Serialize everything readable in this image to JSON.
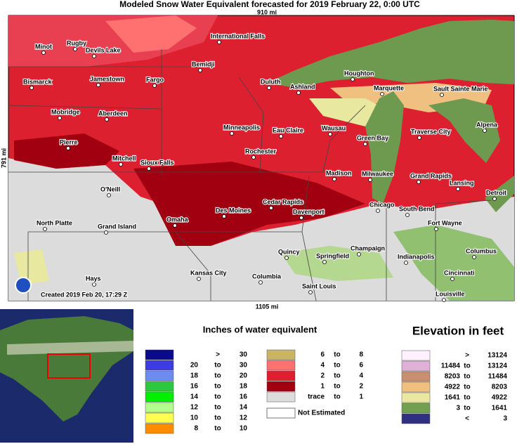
{
  "header": {
    "title": "Modeled Snow Water Equivalent forecasted for 2019 February 22, 0:00 UTC"
  },
  "map": {
    "top_scale": "910 mi",
    "bottom_scale": "1105 mi",
    "side_scale": "791 mi",
    "created": "Created 2019 Feb 20, 17:29 Z",
    "cities": [
      "Minot",
      "Rugby",
      "Devils Lake",
      "International Falls",
      "Bemidji",
      "Bismarck",
      "Jamestown",
      "Fargo",
      "Duluth",
      "Ashland",
      "Houghton",
      "Marquette",
      "Sault Sainte Marie",
      "Mobridge",
      "Aberdeen",
      "Minneapolis",
      "Eau Claire",
      "Wausau",
      "Traverse City",
      "Alpena",
      "Pierre",
      "Green Bay",
      "Rochester",
      "Mitchell",
      "Sioux Falls",
      "Madison",
      "Milwaukee",
      "Grand Rapids",
      "Lansing",
      "O'Neill",
      "Detroit",
      "Cedar Rapids",
      "Des Moines",
      "Davenport",
      "Chicago",
      "South Bend",
      "North Platte",
      "Grand Island",
      "Omaha",
      "Fort Wayne",
      "Quincy",
      "Springfield",
      "Champaign",
      "Indianapolis",
      "Columbus",
      "Hays",
      "Kansas City",
      "Columbia",
      "Cincinnati",
      "Saint Louis",
      "Louisville"
    ]
  },
  "water_legend": {
    "title": "Inches of water equivalent",
    "rows": [
      {
        "color": "#0a0a8c",
        "texts": [
          ">",
          "30"
        ]
      },
      {
        "color": "#3c3ce0",
        "texts": [
          "20",
          "to",
          "30"
        ]
      },
      {
        "color": "#6e8cf0",
        "texts": [
          "18",
          "to",
          "20"
        ]
      },
      {
        "color": "#2ec83c",
        "texts": [
          "16",
          "to",
          "18"
        ]
      },
      {
        "color": "#00f000",
        "texts": [
          "14",
          "to",
          "16"
        ]
      },
      {
        "color": "#b4ff8c",
        "texts": [
          "12",
          "to",
          "14"
        ]
      },
      {
        "color": "#ffff50",
        "texts": [
          "10",
          "to",
          "12"
        ]
      },
      {
        "color": "#ff8c00",
        "texts": [
          "8",
          "to",
          "10"
        ]
      },
      {
        "color": "#c8b464",
        "texts": [
          "6",
          "to",
          "8"
        ]
      },
      {
        "color": "#ff7070",
        "texts": [
          "4",
          "to",
          "6"
        ]
      },
      {
        "color": "#dc2030",
        "texts": [
          "2",
          "to",
          "4"
        ]
      },
      {
        "color": "#a00010",
        "texts": [
          "1",
          "to",
          "2"
        ]
      },
      {
        "color": "#dcdcdc",
        "texts": [
          "trace",
          "to",
          "1"
        ]
      }
    ],
    "not_estimated": {
      "color": "#ffffff",
      "text": "Not Estimated"
    }
  },
  "elevation_legend": {
    "title": "Elevation in feet",
    "rows": [
      {
        "color": "#fff0ff",
        "texts": [
          ">",
          "13124"
        ]
      },
      {
        "color": "#e0b0d8",
        "texts": [
          "11484",
          "to",
          "13124"
        ]
      },
      {
        "color": "#c89070",
        "texts": [
          "8203",
          "to",
          "11484"
        ]
      },
      {
        "color": "#f0c080",
        "texts": [
          "4922",
          "to",
          "8203"
        ]
      },
      {
        "color": "#e8e8a0",
        "texts": [
          "1641",
          "to",
          "4922"
        ]
      },
      {
        "color": "#70a050",
        "texts": [
          "3",
          "to",
          "1641"
        ]
      },
      {
        "color": "#303080",
        "texts": [
          "<",
          "3"
        ]
      }
    ]
  }
}
